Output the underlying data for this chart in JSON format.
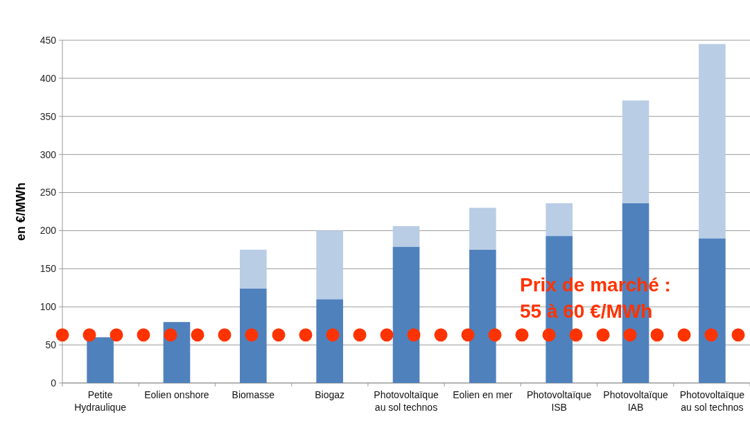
{
  "chart_data": {
    "type": "bar",
    "stacked": true,
    "ylabel": "en €/MWh",
    "categories": [
      "Petite Hydraulique",
      "Eolien onshore",
      "Biomasse",
      "Biogaz",
      "Photovoltaïque au sol technos",
      "Eolien en mer",
      "Photovoltaïque ISB",
      "Photovoltaïque IAB",
      "Photovoltaïque au sol technos"
    ],
    "series": [
      {
        "color": "#4f81bd",
        "values": [
          60,
          80,
          124,
          110,
          179,
          175,
          193,
          236,
          190
        ]
      },
      {
        "color": "#b9cde5",
        "values": [
          0,
          0,
          51,
          90,
          27,
          55,
          43,
          135,
          255
        ]
      }
    ],
    "ylim": [
      0,
      450
    ],
    "yticks": [
      0,
      50,
      100,
      150,
      200,
      250,
      300,
      350,
      400,
      450
    ],
    "grid": "y",
    "ref_lines": [
      {
        "axis": "y",
        "value": 63,
        "color": "#ff3300",
        "line_style": "dotted"
      }
    ],
    "annotations": [
      "Prix de marché :\n55 à 60 €/MWh"
    ]
  }
}
